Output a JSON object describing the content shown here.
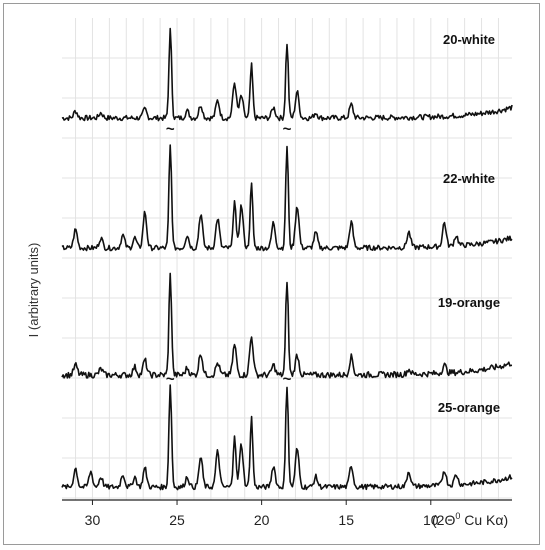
{
  "chart_data": {
    "type": "line",
    "ylabel": "I (arbitrary units)",
    "xlabel_prefix": "(2Θ",
    "xlabel_sup": "0",
    "xlabel_suffix": " Cu Kα)",
    "x_reversed": true,
    "xlim": [
      31.8,
      5.2
    ],
    "xticks": [
      30,
      25,
      20,
      15,
      10
    ],
    "grid": true,
    "legend": "none",
    "truncation_mark": "~",
    "series": [
      {
        "name": "20-white",
        "peaks": [
          [
            25.4,
            1.0
          ],
          [
            18.5,
            0.85
          ],
          [
            20.6,
            0.6
          ],
          [
            21.6,
            0.4
          ],
          [
            21.2,
            0.25
          ],
          [
            22.6,
            0.2
          ],
          [
            23.6,
            0.15
          ],
          [
            17.9,
            0.3
          ],
          [
            19.3,
            0.12
          ],
          [
            26.9,
            0.1
          ],
          [
            14.7,
            0.15
          ],
          [
            31.0,
            0.08
          ],
          [
            29.5,
            0.06
          ],
          [
            24.4,
            0.08
          ],
          [
            16.8,
            0.06
          ]
        ]
      },
      {
        "name": "22-white",
        "peaks": [
          [
            25.4,
            1.2
          ],
          [
            18.5,
            1.2
          ],
          [
            20.6,
            0.75
          ],
          [
            21.6,
            0.58
          ],
          [
            21.2,
            0.5
          ],
          [
            23.6,
            0.4
          ],
          [
            22.6,
            0.35
          ],
          [
            26.9,
            0.42
          ],
          [
            17.9,
            0.5
          ],
          [
            19.3,
            0.3
          ],
          [
            14.7,
            0.3
          ],
          [
            31.0,
            0.22
          ],
          [
            29.5,
            0.12
          ],
          [
            28.2,
            0.15
          ],
          [
            27.5,
            0.12
          ],
          [
            16.8,
            0.18
          ],
          [
            11.3,
            0.18
          ],
          [
            9.2,
            0.28
          ],
          [
            8.5,
            0.12
          ],
          [
            24.4,
            0.15
          ]
        ]
      },
      {
        "name": "19-orange",
        "peaks": [
          [
            25.4,
            1.0
          ],
          [
            18.5,
            0.95
          ],
          [
            20.6,
            0.38
          ],
          [
            21.6,
            0.3
          ],
          [
            23.6,
            0.22
          ],
          [
            22.6,
            0.12
          ],
          [
            26.9,
            0.15
          ],
          [
            17.9,
            0.2
          ],
          [
            19.3,
            0.1
          ],
          [
            14.7,
            0.18
          ],
          [
            31.0,
            0.1
          ],
          [
            29.5,
            0.06
          ],
          [
            24.4,
            0.07
          ],
          [
            27.5,
            0.08
          ],
          [
            9.2,
            0.08
          ],
          [
            11.3,
            0.05
          ]
        ]
      },
      {
        "name": "25-orange",
        "peaks": [
          [
            25.4,
            1.2
          ],
          [
            18.5,
            1.2
          ],
          [
            20.6,
            0.82
          ],
          [
            21.6,
            0.62
          ],
          [
            21.2,
            0.5
          ],
          [
            23.6,
            0.35
          ],
          [
            22.6,
            0.42
          ],
          [
            26.9,
            0.22
          ],
          [
            17.9,
            0.45
          ],
          [
            19.3,
            0.25
          ],
          [
            14.7,
            0.25
          ],
          [
            31.0,
            0.22
          ],
          [
            30.1,
            0.18
          ],
          [
            29.5,
            0.12
          ],
          [
            28.2,
            0.15
          ],
          [
            27.5,
            0.12
          ],
          [
            16.8,
            0.12
          ],
          [
            11.3,
            0.18
          ],
          [
            9.2,
            0.18
          ],
          [
            8.5,
            0.12
          ],
          [
            24.4,
            0.12
          ]
        ]
      }
    ]
  }
}
